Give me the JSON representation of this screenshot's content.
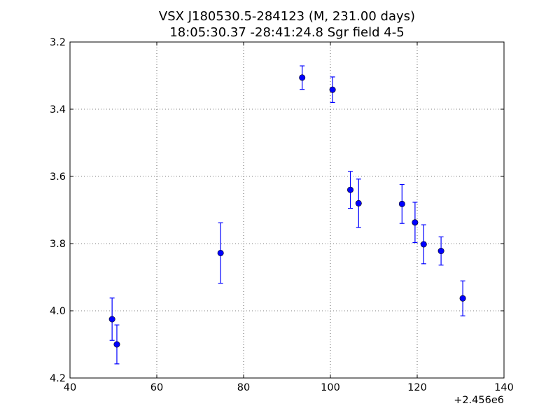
{
  "chart_data": {
    "type": "scatter",
    "title": "VSX J180530.5-284123 (M, 231.00 days)",
    "subtitle": "18:05:30.37 -28:41:24.8 Sgr field 4-5",
    "xlabel": "",
    "ylabel": "",
    "x_offset_label": "+2.456e6",
    "xlim": [
      40,
      140
    ],
    "ylim": [
      4.2,
      3.2
    ],
    "y_inverted": true,
    "grid": true,
    "x_ticks": [
      40,
      60,
      80,
      100,
      120,
      140
    ],
    "x_tick_labels": [
      "40",
      "60",
      "80",
      "100",
      "120",
      "140"
    ],
    "y_ticks": [
      3.2,
      3.4,
      3.6,
      3.8,
      4.0,
      4.2
    ],
    "y_tick_labels": [
      "3.2",
      "3.4",
      "3.6",
      "3.8",
      "4.0",
      "4.2"
    ],
    "color": "#0000ff",
    "series": [
      {
        "points": [
          {
            "x": 49.7,
            "y": 4.025,
            "err": 0.063
          },
          {
            "x": 50.8,
            "y": 4.1,
            "err": 0.058
          },
          {
            "x": 74.7,
            "y": 3.828,
            "err": 0.09
          },
          {
            "x": 93.5,
            "y": 3.306,
            "err": 0.035
          },
          {
            "x": 100.5,
            "y": 3.342,
            "err": 0.038
          },
          {
            "x": 104.6,
            "y": 3.64,
            "err": 0.055
          },
          {
            "x": 106.5,
            "y": 3.68,
            "err": 0.072
          },
          {
            "x": 116.5,
            "y": 3.682,
            "err": 0.058
          },
          {
            "x": 119.5,
            "y": 3.737,
            "err": 0.06
          },
          {
            "x": 121.5,
            "y": 3.802,
            "err": 0.058
          },
          {
            "x": 125.5,
            "y": 3.822,
            "err": 0.042
          },
          {
            "x": 130.5,
            "y": 3.963,
            "err": 0.052
          }
        ]
      }
    ]
  }
}
